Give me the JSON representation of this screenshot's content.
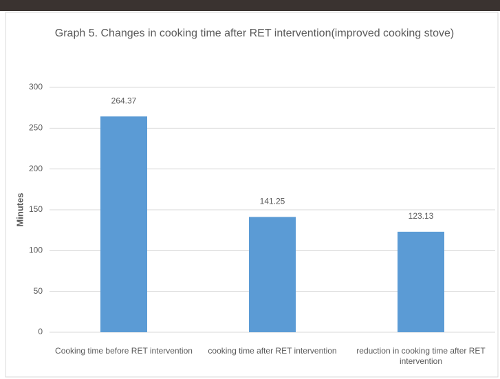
{
  "chart_data": {
    "type": "bar",
    "title": "Graph 5. Changes in cooking time after RET intervention(improved cooking stove)",
    "y_label": "Minutes",
    "categories": [
      "Cooking time before RET intervention",
      "cooking time after RET intervention",
      "reduction in cooking time after RET intervention"
    ],
    "values": [
      264.37,
      141.25,
      123.13
    ],
    "color": "#5b9bd5",
    "ylim": [
      0,
      300
    ],
    "yticks": [
      0,
      50,
      100,
      150,
      200,
      250,
      300
    ],
    "grid": true
  }
}
